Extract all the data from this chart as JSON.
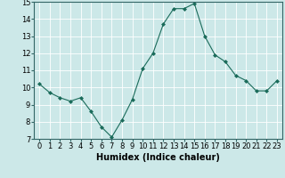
{
  "x": [
    0,
    1,
    2,
    3,
    4,
    5,
    6,
    7,
    8,
    9,
    10,
    11,
    12,
    13,
    14,
    15,
    16,
    17,
    18,
    19,
    20,
    21,
    22,
    23
  ],
  "y": [
    10.2,
    9.7,
    9.4,
    9.2,
    9.4,
    8.6,
    7.7,
    7.1,
    8.1,
    9.3,
    11.1,
    12.0,
    13.7,
    14.6,
    14.6,
    14.9,
    13.0,
    11.9,
    11.5,
    10.7,
    10.4,
    9.8,
    9.8,
    10.4
  ],
  "xlabel": "Humidex (Indice chaleur)",
  "ylim": [
    7,
    15
  ],
  "xlim": [
    -0.5,
    23.5
  ],
  "yticks": [
    7,
    8,
    9,
    10,
    11,
    12,
    13,
    14,
    15
  ],
  "xticks": [
    0,
    1,
    2,
    3,
    4,
    5,
    6,
    7,
    8,
    9,
    10,
    11,
    12,
    13,
    14,
    15,
    16,
    17,
    18,
    19,
    20,
    21,
    22,
    23
  ],
  "line_color": "#1a6b5a",
  "marker_color": "#1a6b5a",
  "bg_color": "#cce8e8",
  "grid_color": "#ffffff",
  "label_fontsize": 7,
  "tick_fontsize": 6
}
